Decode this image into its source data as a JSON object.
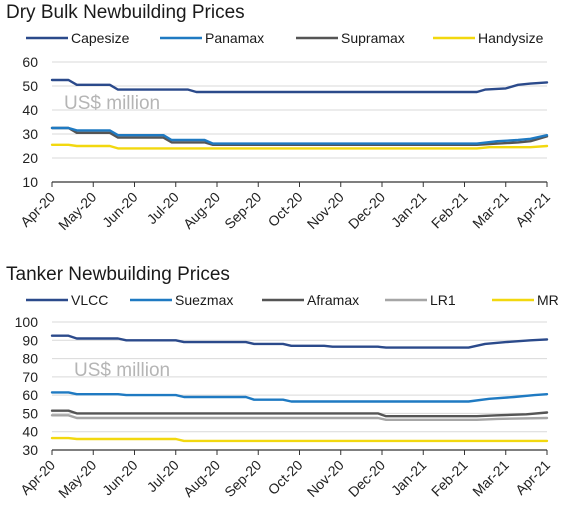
{
  "chart_data": [
    {
      "type": "line",
      "title": "Dry Bulk Newbuilding Prices",
      "annotation": "US$ million",
      "xlabel": "",
      "ylabel": "",
      "ylim": [
        10,
        60
      ],
      "yticks": [
        10,
        20,
        30,
        40,
        50,
        60
      ],
      "x_ticks": [
        "Apr-20",
        "May-20",
        "Jun-20",
        "Jul-20",
        "Aug-20",
        "Sep-20",
        "Oct-20",
        "Nov-20",
        "Dec-20",
        "Jan-21",
        "Feb-21",
        "Mar-21",
        "Apr-21"
      ],
      "grid": true,
      "legend": "top",
      "series": [
        {
          "name": "Capesize",
          "color": "#2b4a8b",
          "points": [
            [
              0,
              52.5
            ],
            [
              0.4,
              52.5
            ],
            [
              0.6,
              50.5
            ],
            [
              1.4,
              50.5
            ],
            [
              1.6,
              48.5
            ],
            [
              3.3,
              48.5
            ],
            [
              3.5,
              47.5
            ],
            [
              9.8,
              47.5
            ],
            [
              10.3,
              47.5
            ],
            [
              10.5,
              48.5
            ],
            [
              11.0,
              49.0
            ],
            [
              11.3,
              50.5
            ],
            [
              11.6,
              51.0
            ],
            [
              12,
              51.5
            ]
          ]
        },
        {
          "name": "Panamax",
          "color": "#1f7ac2",
          "points": [
            [
              0,
              32.5
            ],
            [
              0.4,
              32.5
            ],
            [
              0.6,
              31.5
            ],
            [
              1.4,
              31.5
            ],
            [
              1.6,
              29.5
            ],
            [
              2.7,
              29.5
            ],
            [
              2.9,
              27.5
            ],
            [
              3.7,
              27.5
            ],
            [
              3.9,
              26.0
            ],
            [
              10.3,
              26.0
            ],
            [
              10.8,
              27.0
            ],
            [
              11.3,
              27.5
            ],
            [
              11.6,
              28.0
            ],
            [
              12,
              29.5
            ]
          ]
        },
        {
          "name": "Supramax",
          "color": "#555555",
          "points": [
            [
              0,
              32.5
            ],
            [
              0.4,
              32.5
            ],
            [
              0.6,
              30.5
            ],
            [
              1.4,
              30.5
            ],
            [
              1.6,
              28.5
            ],
            [
              2.7,
              28.5
            ],
            [
              2.9,
              26.5
            ],
            [
              3.7,
              26.5
            ],
            [
              3.9,
              25.5
            ],
            [
              10.3,
              25.5
            ],
            [
              10.8,
              26.0
            ],
            [
              11.3,
              26.5
            ],
            [
              11.6,
              27.0
            ],
            [
              12,
              29.0
            ]
          ]
        },
        {
          "name": "Handysize",
          "color": "#f2d80f",
          "points": [
            [
              0,
              25.5
            ],
            [
              0.4,
              25.5
            ],
            [
              0.6,
              25.0
            ],
            [
              1.4,
              25.0
            ],
            [
              1.6,
              24.0
            ],
            [
              9.8,
              24.0
            ],
            [
              10.3,
              24.0
            ],
            [
              10.6,
              24.5
            ],
            [
              11.6,
              24.5
            ],
            [
              12,
              25.0
            ]
          ]
        }
      ]
    },
    {
      "type": "line",
      "title": "Tanker Newbuilding Prices",
      "annotation": "US$ million",
      "xlabel": "",
      "ylabel": "",
      "ylim": [
        30,
        100
      ],
      "yticks": [
        30,
        40,
        50,
        60,
        70,
        80,
        90,
        100
      ],
      "x_ticks": [
        "Apr-20",
        "May-20",
        "Jun-20",
        "Jul-20",
        "Aug-20",
        "Sep-20",
        "Oct-20",
        "Nov-20",
        "Dec-20",
        "Jan-21",
        "Feb-21",
        "Mar-21",
        "Apr-21"
      ],
      "grid": true,
      "legend": "top",
      "series": [
        {
          "name": "VLCC",
          "color": "#2b4a8b",
          "points": [
            [
              0,
              92.5
            ],
            [
              0.4,
              92.5
            ],
            [
              0.6,
              91.0
            ],
            [
              1.6,
              91.0
            ],
            [
              1.8,
              90.0
            ],
            [
              3.0,
              90.0
            ],
            [
              3.2,
              89.0
            ],
            [
              4.7,
              89.0
            ],
            [
              4.9,
              88.0
            ],
            [
              5.6,
              88.0
            ],
            [
              5.8,
              87.0
            ],
            [
              6.6,
              87.0
            ],
            [
              6.8,
              86.5
            ],
            [
              7.9,
              86.5
            ],
            [
              8.1,
              86.0
            ],
            [
              10.1,
              86.0
            ],
            [
              10.5,
              88.0
            ],
            [
              11.0,
              89.0
            ],
            [
              11.6,
              90.0
            ],
            [
              12,
              90.5
            ]
          ]
        },
        {
          "name": "Suezmax",
          "color": "#1f7ac2",
          "points": [
            [
              0,
              61.5
            ],
            [
              0.4,
              61.5
            ],
            [
              0.6,
              60.5
            ],
            [
              1.6,
              60.5
            ],
            [
              1.8,
              60.0
            ],
            [
              3.0,
              60.0
            ],
            [
              3.2,
              59.0
            ],
            [
              4.7,
              59.0
            ],
            [
              4.9,
              57.5
            ],
            [
              5.6,
              57.5
            ],
            [
              5.8,
              56.5
            ],
            [
              10.1,
              56.5
            ],
            [
              10.6,
              58.0
            ],
            [
              11.2,
              59.0
            ],
            [
              11.7,
              60.0
            ],
            [
              12,
              60.5
            ]
          ]
        },
        {
          "name": "Aframax",
          "color": "#555555",
          "points": [
            [
              0,
              51.5
            ],
            [
              0.4,
              51.5
            ],
            [
              0.6,
              50.0
            ],
            [
              7.9,
              50.0
            ],
            [
              8.1,
              48.5
            ],
            [
              10.3,
              48.5
            ],
            [
              10.8,
              49.0
            ],
            [
              11.5,
              49.5
            ],
            [
              12,
              50.5
            ]
          ]
        },
        {
          "name": "LR1",
          "color": "#a6a6a6",
          "points": [
            [
              0,
              49.0
            ],
            [
              0.4,
              49.0
            ],
            [
              0.6,
              47.5
            ],
            [
              7.9,
              47.5
            ],
            [
              8.1,
              46.5
            ],
            [
              10.3,
              46.5
            ],
            [
              10.8,
              47.0
            ],
            [
              12,
              47.5
            ]
          ]
        },
        {
          "name": "MR",
          "color": "#f2d80f",
          "points": [
            [
              0,
              36.5
            ],
            [
              0.4,
              36.5
            ],
            [
              0.6,
              36.0
            ],
            [
              3.0,
              36.0
            ],
            [
              3.2,
              35.0
            ],
            [
              12,
              35.0
            ]
          ]
        }
      ]
    }
  ]
}
